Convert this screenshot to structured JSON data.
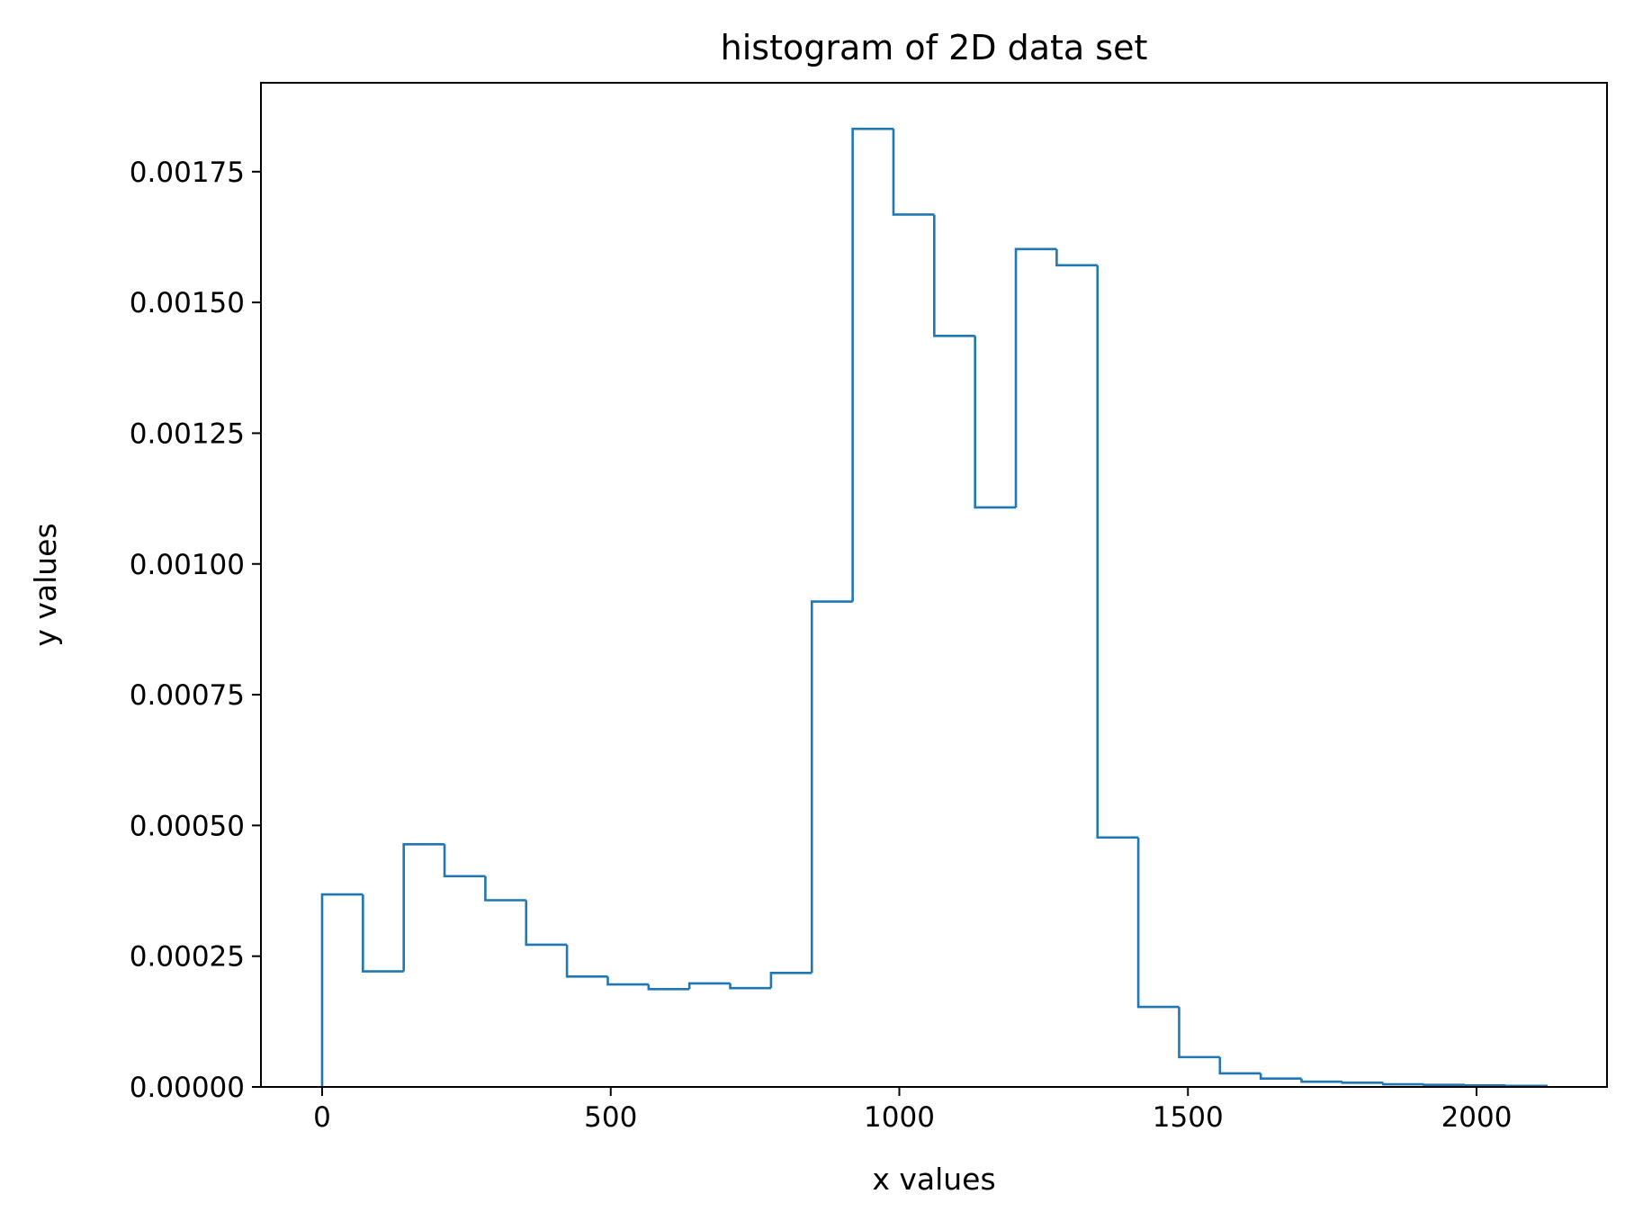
{
  "chart_data": {
    "type": "histogram",
    "title": "histogram of 2D data set",
    "xlabel": "x values",
    "ylabel": "y values",
    "xlim": [
      -106,
      2226
    ],
    "ylim": [
      0,
      0.00192
    ],
    "xticks": [
      0,
      500,
      1000,
      1500,
      2000
    ],
    "xtick_labels": [
      "0",
      "500",
      "1000",
      "1500",
      "2000"
    ],
    "yticks": [
      0,
      0.00025,
      0.0005,
      0.00075,
      0.001,
      0.00125,
      0.0015,
      0.00175
    ],
    "ytick_labels": [
      "0.00000",
      "0.00025",
      "0.00050",
      "0.00075",
      "0.00100",
      "0.00125",
      "0.00150",
      "0.00175"
    ],
    "grid": false,
    "histtype": "step",
    "color": "#1f77b4",
    "bin_edges": [
      0,
      70.7,
      141.4,
      212.1,
      282.8,
      353.5,
      424.2,
      494.9,
      565.6,
      636.3,
      707,
      777.7,
      848.4,
      919.1,
      989.8,
      1060.5,
      1131.2,
      1201.9,
      1272.6,
      1343.3,
      1414,
      1484.7,
      1555.4,
      1626.1,
      1696.8,
      1767.5,
      1838.2,
      1908.9,
      1979.6,
      2050.3,
      2121
    ],
    "values": [
      0.000368,
      0.000221,
      0.000464,
      0.000403,
      0.000357,
      0.000272,
      0.000211,
      0.000196,
      0.000187,
      0.000198,
      0.000189,
      0.000218,
      0.000928,
      0.001832,
      0.001668,
      0.001436,
      0.001108,
      0.001602,
      0.001571,
      0.000477,
      0.000153,
      5.7e-05,
      2.6e-05,
      1.6e-05,
      1e-05,
      8e-06,
      5e-06,
      4e-06,
      3e-06,
      2e-06
    ]
  }
}
